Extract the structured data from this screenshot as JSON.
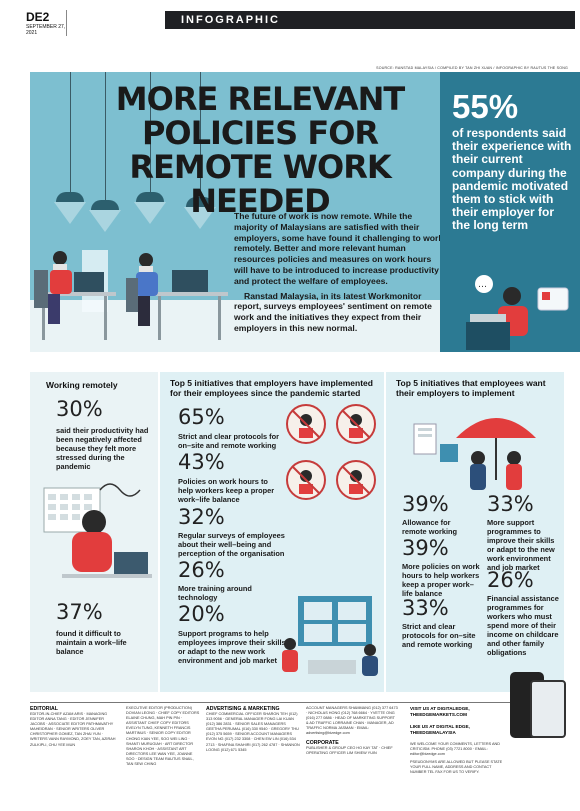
{
  "header": {
    "page": "DE2",
    "date_line1": "SEPTEMBER 27,",
    "date_line2": "2021",
    "section": "INFOGRAPHIC"
  },
  "source": "SOURCE: RANSTAD MALAYSIA / COMPILED BY TAN ZHI XUAN / INFOGRAPHIC BY RAUTUS THE SONG",
  "title": {
    "line1": "MORE RELEVANT",
    "line2": "POLICIES FOR",
    "line3": "REMOTE WORK NEEDED"
  },
  "highlight": {
    "pct": "55%",
    "text": "of respondents said their experience with their current company during the pandemic motivated them to stick with their employer for the long term"
  },
  "intro": {
    "p1": "The future of work is now remote. While the majority of Malaysians are satisfied with their employers, some have found it challenging to work remotely. Better and more relevant human resources policies and measures on work hours will have to be introduced to increase productivity and protect the welfare of employees.",
    "p2": "Ranstad Malaysia, in its latest Workmonitor report, surveys employees' sentiment on remote work and the initiatives they expect from their employers in this new normal."
  },
  "working_remotely": {
    "heading": "Working remotely",
    "stat1": {
      "pct": "30%",
      "text": "said their productivity had been negatively affected because they felt more stressed during the pandemic"
    },
    "stat2": {
      "pct": "37%",
      "text": "found it difficult to maintain a work–life balance"
    }
  },
  "implemented": {
    "heading": "Top 5 initiatives that employers have implemented for their employees since the pandemic started",
    "items": [
      {
        "pct": "65%",
        "text": "Strict and clear protocols for on–site and remote working"
      },
      {
        "pct": "43%",
        "text": "Policies on work hours to help workers keep a proper work–life balance"
      },
      {
        "pct": "32%",
        "text": "Regular surveys of employees about their well–being and perception of the organisation"
      },
      {
        "pct": "26%",
        "text": "More training around technology"
      },
      {
        "pct": "20%",
        "text": "Support programs to help employees improve their skills or adapt to the new work environment and job market"
      }
    ]
  },
  "wanted": {
    "heading": "Top 5 initiatives that employees want their employers to implement",
    "items": [
      {
        "pct": "39%",
        "text": "Allowance for remote working"
      },
      {
        "pct": "33%",
        "text": "More support programmes to improve their skills or adapt to the new work environment and job market"
      },
      {
        "pct": "39%",
        "text": "More policies on work hours to help workers keep a proper work–life balance"
      },
      {
        "pct": "26%",
        "text": "Financial assistance programmes for workers who must spend more of their income on childcare and other family obligations"
      },
      {
        "pct": "33%",
        "text": "Strict and clear protocols for on–site and remote working"
      }
    ]
  },
  "footer": {
    "editorial_head": "EDITORIAL",
    "editorial": "EDITOR-IN-CHIEF AZAM ARIS · MANAGING EDITOR ANNA TANG · EDITOR JENNIFER JACOBS · ASSOCIATE EDITOR PATHMAVATHY MAHEIDRAN · SENIOR WRITERS OLIVER CHRISTOPHER GOMEZ, TAN ZHAI YUN · WRITERS VANN RAYMOND, ZOEY TAN, AZIRAH ZULKIPLI, CHU YEE MUN",
    "production": "EXECUTIVE EDITOR (PRODUCTION) DOVIAN LEONG · CHIEF COPY EDITORS ELAINE CHUNG, MAH PIN PIN · ASSISTANT CHIEF COPY EDITORS EVELYN TUNG, KENNETH FRANCIS MARTINUS · SENIOR COPY EDITOR CHONG KIAN YEE, SOO WEI LING · SHANTI MURUGIAH · ART DIRECTOR SHARON KHOH · ASSISTANT ART DIRECTORS LEE WAN YEE, JOANNE SOO · DESIGN TEAM RAUTUS SNAIL, TAN SEW CHING",
    "advertising_head": "ADVERTISING & MARKETING",
    "advertising": "CHIEF COMMERCIAL OFFICER SHARON TEH (012) 313 9056 · GENERAL MANAGER FONG LAI KUAN (012) 386 2831 · SENIOR SALES MANAGERS GEETHA PERUMAL (016) 330 9540 · GREGORY THU (012) 375 5659 · SENIOR ACCOUNT MANAGERS EVON NG (017) 232 3308 · CHEN EW LIN (016) 534 2713 · SHAFINA SHAHIRI (017) 262 4787 · SHANNON LOONG (012) 671 5345",
    "account_managers": "ACCOUNT MANAGERS SHAMMANG (012) 377 6473 · NICHOLAS HONG (012) 768 6664 · YVETTE ONG (016) 277 0886 · HEAD OF MARKETING SUPPORT & AD TRAFFIC LORRAINE CHAN · MANAGER, AD TRAFFIC NORMA JASMAN · EMAIL: advertising@bizedge.com",
    "corporate_head": "CORPORATE",
    "corporate": "PUBLISHER & GROUP CEO HO KAY TAT · CHIEF OPERATING OFFICER LIM SHIEW YUIN",
    "like1": "VISIT US AT DIGITALEDGE, THEEDGEMARKETS.COM",
    "like2": "LIKE US AT DIGITAL EDGE, THEEDGEMALAYSIA",
    "contact": "WE WELCOME YOUR COMMENTS, LETTERS AND CRITICISM. PHONE (03) 7721 8000 · EMAIL: editor@bizedge.com",
    "note": "PSEUDONYMS ARE ALLOWED BUT PLEASE STATE YOUR FULL NAME, ADDRESS AND CONTACT NUMBER TEL FAX FOR US TO VERIFY."
  },
  "colors": {
    "hero_blue": "#7dbfd0",
    "side_teal": "#2c7a93",
    "panel_light": "#dff0f4",
    "header_black": "#1f2024"
  }
}
